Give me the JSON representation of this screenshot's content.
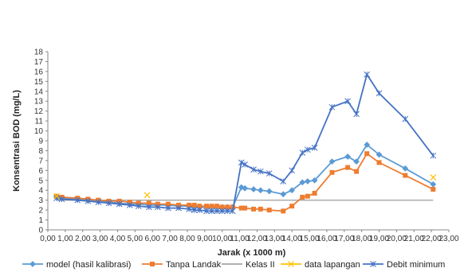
{
  "chart_data": {
    "type": "line",
    "title": "",
    "xlabel": "Jarak  (x 1000 m)",
    "ylabel": "Konsentrasi BOD (mg/L)",
    "xlim": [
      0,
      23
    ],
    "ylim": [
      0,
      18
    ],
    "x_ticks": [
      "0,00",
      "1,00",
      "2,00",
      "3,00",
      "4,00",
      "5,00",
      "6,00",
      "7,00",
      "8,00",
      "9,00",
      "10,00",
      "11,00",
      "12,00",
      "13,00",
      "14,00",
      "15,00",
      "16,00",
      "17,00",
      "18,00",
      "19,00",
      "20,00",
      "21,00",
      "22,00",
      "23,00"
    ],
    "y_ticks": [
      "0",
      "1",
      "2",
      "3",
      "4",
      "5",
      "6",
      "7",
      "8",
      "9",
      "10",
      "11",
      "12",
      "13",
      "14",
      "15",
      "16",
      "17",
      "18"
    ],
    "legend_position": "bottom",
    "grid": false,
    "series": [
      {
        "name": "model (hasil kalibrasi)",
        "color": "#5B9BD5",
        "marker": "diamond",
        "x": [
          0.5,
          0.8,
          1.7,
          2.3,
          2.9,
          3.5,
          4.1,
          4.7,
          5.2,
          5.8,
          6.3,
          6.9,
          7.5,
          8.1,
          8.4,
          8.7,
          9.1,
          9.4,
          9.7,
          10.0,
          10.3,
          10.6,
          11.1,
          11.3,
          11.8,
          12.2,
          12.7,
          13.5,
          14.0,
          14.6,
          14.9,
          15.3,
          16.3,
          17.2,
          17.7,
          18.3,
          19.0,
          20.5,
          22.1
        ],
        "y": [
          3.3,
          3.2,
          3.1,
          3.0,
          2.9,
          2.8,
          2.7,
          2.6,
          2.6,
          2.5,
          2.5,
          2.5,
          2.4,
          2.4,
          2.3,
          2.3,
          2.3,
          2.3,
          2.3,
          2.3,
          2.3,
          2.3,
          4.3,
          4.2,
          4.1,
          4.0,
          3.9,
          3.6,
          4.0,
          4.8,
          4.9,
          5.0,
          6.9,
          7.4,
          6.9,
          8.6,
          7.6,
          6.2,
          4.6
        ]
      },
      {
        "name": "Tanpa Landak",
        "color": "#ED7D31",
        "marker": "square",
        "x": [
          0.5,
          0.8,
          1.7,
          2.3,
          2.9,
          3.5,
          4.1,
          4.7,
          5.2,
          5.8,
          6.3,
          6.9,
          7.5,
          8.1,
          8.4,
          8.7,
          9.1,
          9.4,
          9.7,
          10.0,
          10.3,
          10.6,
          11.1,
          11.3,
          11.8,
          12.2,
          12.7,
          13.5,
          14.0,
          14.6,
          14.9,
          15.3,
          16.3,
          17.2,
          17.7,
          18.3,
          19.0,
          20.5,
          22.1
        ],
        "y": [
          3.4,
          3.3,
          3.2,
          3.1,
          3.0,
          2.9,
          2.9,
          2.8,
          2.7,
          2.7,
          2.6,
          2.6,
          2.5,
          2.5,
          2.5,
          2.4,
          2.4,
          2.4,
          2.4,
          2.3,
          2.3,
          2.3,
          2.2,
          2.2,
          2.1,
          2.1,
          2.0,
          1.9,
          2.4,
          3.3,
          3.4,
          3.7,
          5.8,
          6.3,
          5.9,
          7.7,
          6.8,
          5.5,
          4.1
        ]
      },
      {
        "name": "Kelas II",
        "color": "#A5A5A5",
        "marker": "none",
        "x": [
          0.5,
          22.1
        ],
        "y": [
          3,
          3
        ]
      },
      {
        "name": "data lapangan",
        "color": "#FFC000",
        "marker": "x",
        "x": [
          0.5,
          5.7,
          22.1
        ],
        "y": [
          3.4,
          3.5,
          5.3
        ]
      },
      {
        "name": "Debit minimum",
        "color": "#4472C4",
        "marker": "star",
        "x": [
          0.5,
          0.8,
          1.7,
          2.3,
          2.9,
          3.5,
          4.1,
          4.7,
          5.2,
          5.8,
          6.3,
          6.9,
          7.5,
          8.1,
          8.4,
          8.7,
          9.1,
          9.4,
          9.7,
          10.0,
          10.3,
          10.6,
          11.1,
          11.3,
          11.8,
          12.2,
          12.7,
          13.5,
          14.0,
          14.6,
          14.9,
          15.3,
          16.3,
          17.2,
          17.7,
          18.3,
          19.0,
          20.5,
          22.1
        ],
        "y": [
          3.2,
          3.1,
          3.0,
          2.9,
          2.8,
          2.7,
          2.6,
          2.5,
          2.4,
          2.3,
          2.3,
          2.2,
          2.2,
          2.1,
          2.0,
          2.0,
          1.9,
          1.9,
          1.9,
          1.9,
          1.9,
          1.9,
          6.8,
          6.6,
          6.1,
          5.9,
          5.7,
          4.9,
          6.0,
          7.8,
          8.1,
          8.3,
          12.4,
          13.0,
          11.7,
          15.7,
          13.8,
          11.2,
          7.5
        ]
      }
    ]
  }
}
